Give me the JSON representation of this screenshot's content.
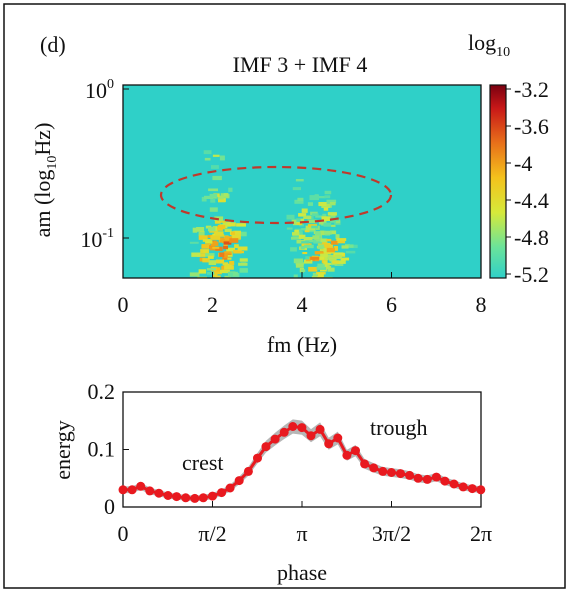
{
  "panel_label": "(d)",
  "chart_data": [
    {
      "type": "heatmap",
      "title": "IMF 3 + IMF 4",
      "xlabel": "fm (Hz)",
      "ylabel": "am (log",
      "ylabel_sub": "10",
      "ylabel_tail": "Hz)",
      "x_ticks": [
        "0",
        "2",
        "4",
        "6",
        "8"
      ],
      "xlim": [
        0,
        8
      ],
      "y_ticks": [
        {
          "base": "10",
          "exp": "0",
          "value": 1.0
        },
        {
          "base": "10",
          "exp": "-1",
          "value": 0.1
        }
      ],
      "y_scale": "log",
      "colorbar": {
        "label": "log",
        "label_sub": "10",
        "ticks": [
          "-3.2",
          "-3.6",
          "-4",
          "-4.4",
          "-4.8",
          "-5.2"
        ],
        "range": [
          -5.2,
          -3.2
        ]
      },
      "background_color": "#2fd0c8",
      "annotation": "dashed ellipse around am ≈ 0.15, fm 0.5–6.5 Hz",
      "ellipse_color": "#c0392b",
      "hotspots": [
        {
          "fm": 2.0,
          "am": 0.08,
          "level": -3.4
        },
        {
          "fm": 2.2,
          "am": 0.09,
          "level": -3.5
        },
        {
          "fm": 2.1,
          "am": 0.2,
          "level": -4.2
        },
        {
          "fm": 2.0,
          "am": 0.35,
          "level": -4.4
        },
        {
          "fm": 4.2,
          "am": 0.08,
          "level": -3.7
        },
        {
          "fm": 4.6,
          "am": 0.09,
          "level": -3.8
        },
        {
          "fm": 4.0,
          "am": 0.13,
          "level": -4.0
        },
        {
          "fm": 4.4,
          "am": 0.16,
          "level": -4.2
        },
        {
          "fm": 3.9,
          "am": 0.25,
          "level": -4.6
        }
      ]
    },
    {
      "type": "line",
      "xlabel": "phase",
      "ylabel": "energy",
      "x_ticks": [
        "0",
        "π/2",
        "π",
        "3π/2",
        "2π"
      ],
      "xlim": [
        0,
        6.2832
      ],
      "y_ticks": [
        "0",
        "0.1",
        "0.2"
      ],
      "ylim": [
        0,
        0.2
      ],
      "annotations": [
        {
          "text": "crest",
          "x": 1.15,
          "y": 0.07
        },
        {
          "text": "trough",
          "x": 4.0,
          "y": 0.12
        }
      ],
      "line_color": "#e8191f",
      "band_color": "#9e9e9e",
      "series": [
        {
          "x": [
            0.0,
            0.16,
            0.31,
            0.47,
            0.63,
            0.79,
            0.94,
            1.1,
            1.26,
            1.41,
            1.57,
            1.73,
            1.88,
            2.04,
            2.2,
            2.36,
            2.51,
            2.67,
            2.83,
            2.98,
            3.14,
            3.3,
            3.46,
            3.61,
            3.77,
            3.93,
            4.08,
            4.24,
            4.4,
            4.56,
            4.71,
            4.87,
            5.03,
            5.18,
            5.34,
            5.5,
            5.65,
            5.81,
            5.97,
            6.13,
            6.28
          ],
          "values": [
            0.03,
            0.03,
            0.036,
            0.028,
            0.024,
            0.02,
            0.018,
            0.016,
            0.015,
            0.016,
            0.019,
            0.025,
            0.033,
            0.046,
            0.062,
            0.085,
            0.105,
            0.118,
            0.13,
            0.14,
            0.138,
            0.124,
            0.135,
            0.11,
            0.12,
            0.09,
            0.098,
            0.075,
            0.068,
            0.062,
            0.06,
            0.058,
            0.055,
            0.05,
            0.048,
            0.052,
            0.045,
            0.04,
            0.035,
            0.032,
            0.03
          ]
        }
      ]
    }
  ]
}
